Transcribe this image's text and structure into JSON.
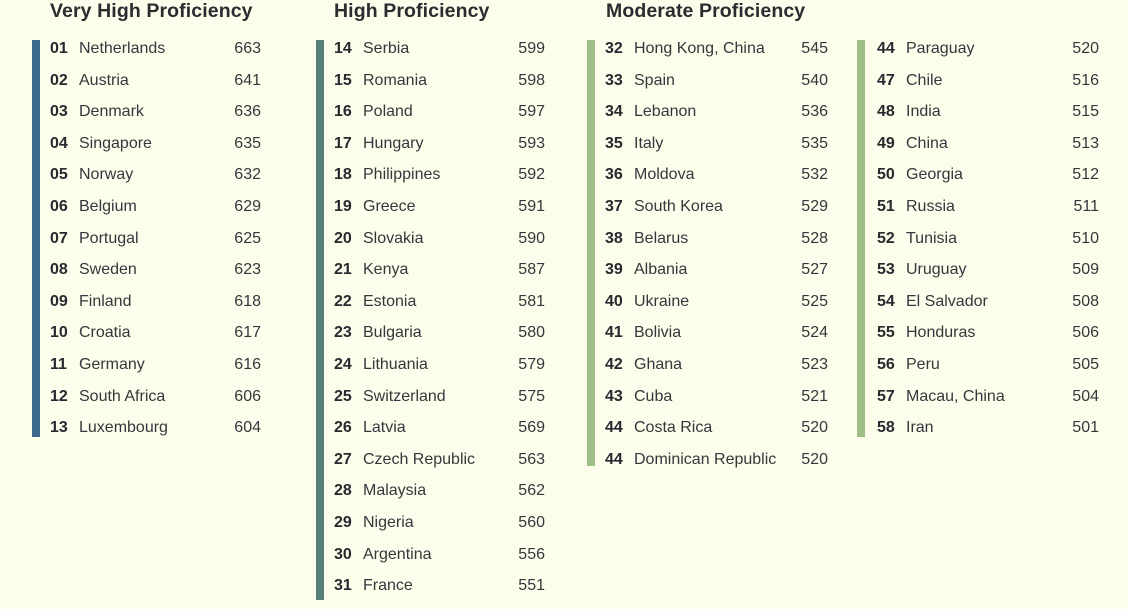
{
  "headings": {
    "very_high": "Very High Proficiency",
    "high": "High Proficiency",
    "moderate": "Moderate Proficiency"
  },
  "colors": {
    "very_high_bar": "#3e6a8c",
    "high_bar": "#577f78",
    "moderate_bar": "#9ebe86",
    "background": "#fdfdec"
  },
  "columns": [
    {
      "group": "very_high",
      "rows": [
        {
          "rank": "01",
          "country": "Netherlands",
          "score": "663"
        },
        {
          "rank": "02",
          "country": "Austria",
          "score": "641"
        },
        {
          "rank": "03",
          "country": "Denmark",
          "score": "636"
        },
        {
          "rank": "04",
          "country": "Singapore",
          "score": "635"
        },
        {
          "rank": "05",
          "country": "Norway",
          "score": "632"
        },
        {
          "rank": "06",
          "country": "Belgium",
          "score": "629"
        },
        {
          "rank": "07",
          "country": "Portugal",
          "score": "625"
        },
        {
          "rank": "08",
          "country": "Sweden",
          "score": "623"
        },
        {
          "rank": "09",
          "country": "Finland",
          "score": "618"
        },
        {
          "rank": "10",
          "country": "Croatia",
          "score": "617"
        },
        {
          "rank": "11",
          "country": "Germany",
          "score": "616"
        },
        {
          "rank": "12",
          "country": "South Africa",
          "score": "606"
        },
        {
          "rank": "13",
          "country": "Luxembourg",
          "score": "604"
        }
      ]
    },
    {
      "group": "high",
      "rows": [
        {
          "rank": "14",
          "country": "Serbia",
          "score": "599"
        },
        {
          "rank": "15",
          "country": "Romania",
          "score": "598"
        },
        {
          "rank": "16",
          "country": "Poland",
          "score": "597"
        },
        {
          "rank": "17",
          "country": "Hungary",
          "score": "593"
        },
        {
          "rank": "18",
          "country": "Philippines",
          "score": "592"
        },
        {
          "rank": "19",
          "country": "Greece",
          "score": "591"
        },
        {
          "rank": "20",
          "country": "Slovakia",
          "score": "590"
        },
        {
          "rank": "21",
          "country": "Kenya",
          "score": "587"
        },
        {
          "rank": "22",
          "country": "Estonia",
          "score": "581"
        },
        {
          "rank": "23",
          "country": "Bulgaria",
          "score": "580"
        },
        {
          "rank": "24",
          "country": "Lithuania",
          "score": "579"
        },
        {
          "rank": "25",
          "country": "Switzerland",
          "score": "575"
        },
        {
          "rank": "26",
          "country": "Latvia",
          "score": "569"
        },
        {
          "rank": "27",
          "country": "Czech Republic",
          "score": "563"
        },
        {
          "rank": "28",
          "country": "Malaysia",
          "score": "562"
        },
        {
          "rank": "29",
          "country": "Nigeria",
          "score": "560"
        },
        {
          "rank": "30",
          "country": "Argentina",
          "score": "556"
        },
        {
          "rank": "31",
          "country": "France",
          "score": "551"
        }
      ]
    },
    {
      "group": "moderate",
      "rows": [
        {
          "rank": "32",
          "country": "Hong Kong, China",
          "score": "545"
        },
        {
          "rank": "33",
          "country": "Spain",
          "score": "540"
        },
        {
          "rank": "34",
          "country": "Lebanon",
          "score": "536"
        },
        {
          "rank": "35",
          "country": "Italy",
          "score": "535"
        },
        {
          "rank": "36",
          "country": "Moldova",
          "score": "532"
        },
        {
          "rank": "37",
          "country": "South Korea",
          "score": "529"
        },
        {
          "rank": "38",
          "country": "Belarus",
          "score": "528"
        },
        {
          "rank": "39",
          "country": "Albania",
          "score": "527"
        },
        {
          "rank": "40",
          "country": "Ukraine",
          "score": "525"
        },
        {
          "rank": "41",
          "country": "Bolivia",
          "score": "524"
        },
        {
          "rank": "42",
          "country": "Ghana",
          "score": "523"
        },
        {
          "rank": "43",
          "country": "Cuba",
          "score": "521"
        },
        {
          "rank": "44",
          "country": "Costa Rica",
          "score": "520"
        },
        {
          "rank": "44",
          "country": "Dominican Republic",
          "score": "520"
        }
      ]
    },
    {
      "group": "moderate",
      "rows": [
        {
          "rank": "44",
          "country": "Paraguay",
          "score": "520"
        },
        {
          "rank": "47",
          "country": "Chile",
          "score": "516"
        },
        {
          "rank": "48",
          "country": "India",
          "score": "515"
        },
        {
          "rank": "49",
          "country": "China",
          "score": "513"
        },
        {
          "rank": "50",
          "country": "Georgia",
          "score": "512"
        },
        {
          "rank": "51",
          "country": "Russia",
          "score": "511"
        },
        {
          "rank": "52",
          "country": "Tunisia",
          "score": "510"
        },
        {
          "rank": "53",
          "country": "Uruguay",
          "score": "509"
        },
        {
          "rank": "54",
          "country": "El Salvador",
          "score": "508"
        },
        {
          "rank": "55",
          "country": "Honduras",
          "score": "506"
        },
        {
          "rank": "56",
          "country": "Peru",
          "score": "505"
        },
        {
          "rank": "57",
          "country": "Macau, China",
          "score": "504"
        },
        {
          "rank": "58",
          "country": "Iran",
          "score": "501"
        }
      ]
    }
  ]
}
